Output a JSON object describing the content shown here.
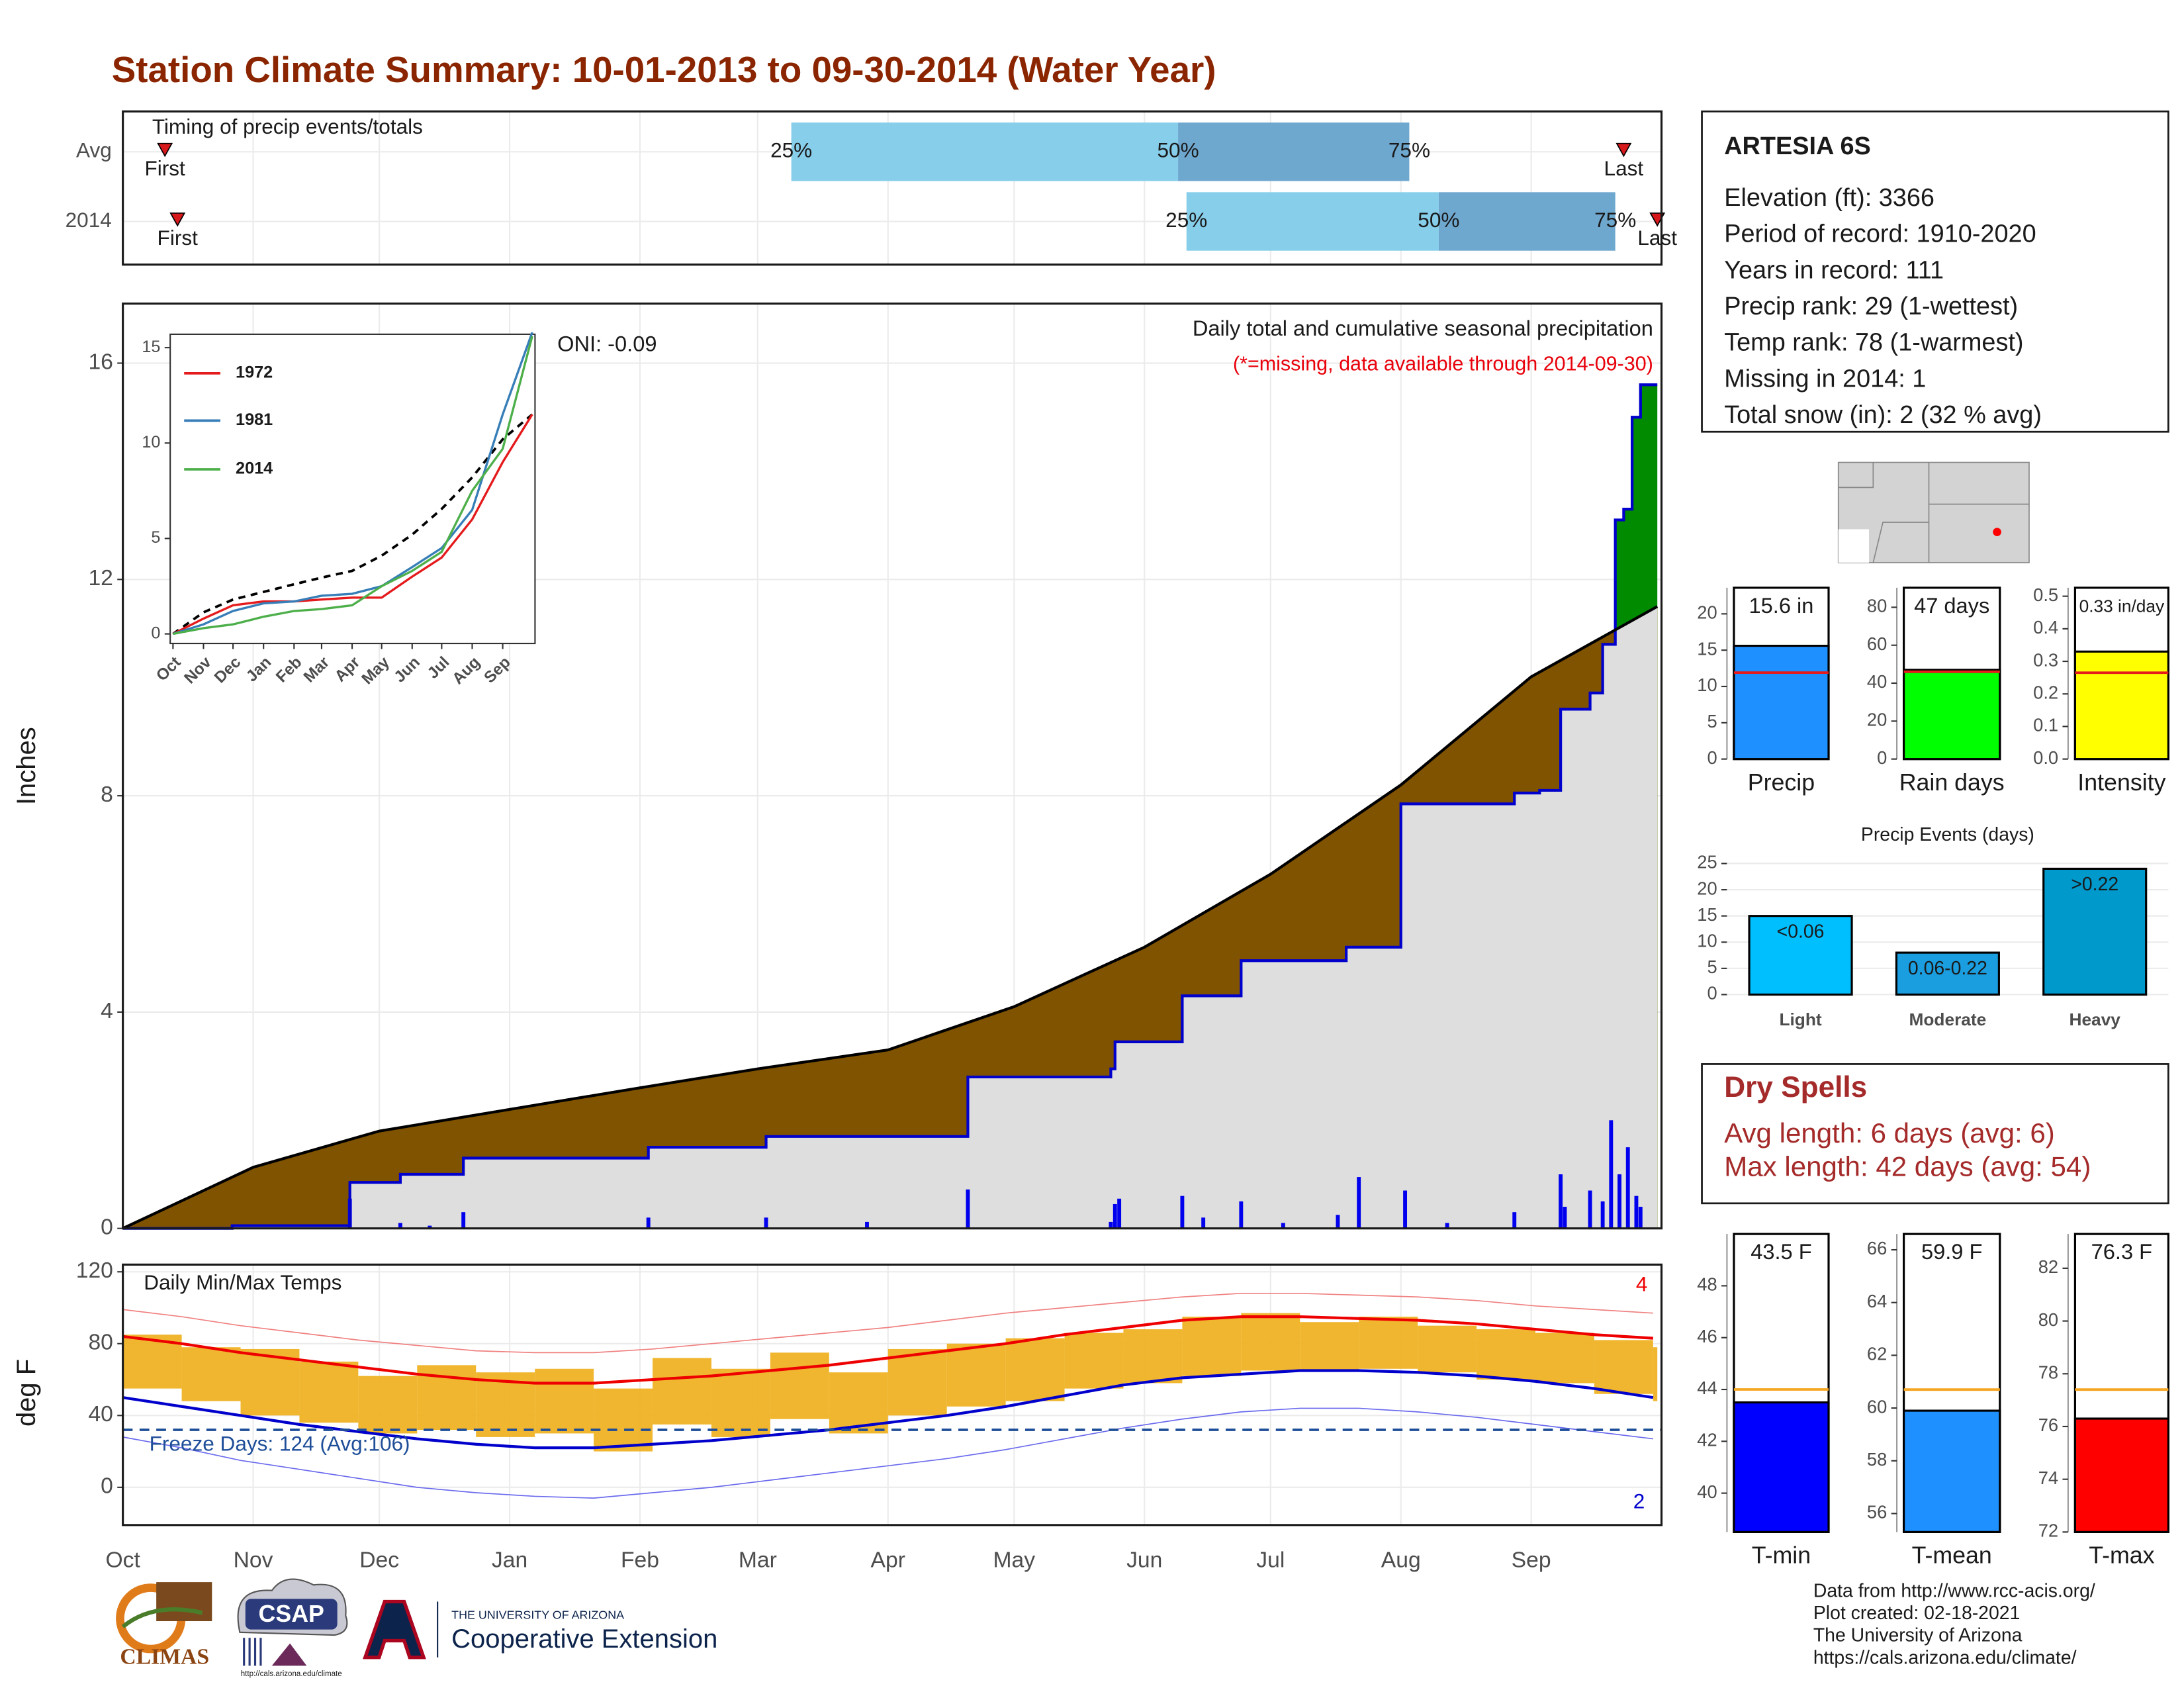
{
  "title": "Station Climate Summary: 10-01-2013 to 09-30-2014 (Water Year)",
  "chart_data": [
    {
      "type": "timing",
      "title": "Timing of precip events/totals",
      "xlim": [
        0,
        365
      ],
      "pct_labels": [
        "25%",
        "50%",
        "75%"
      ],
      "first_label": "First",
      "last_label": "Last",
      "colors": {
        "lower": "#87ceeb",
        "upper": "#6fa8cf",
        "marker": "#d7191c"
      },
      "rows": [
        {
          "name": "Avg",
          "first": 10,
          "q25": 159,
          "q50": 251,
          "q75": 306,
          "last": 357
        },
        {
          "name": "2014",
          "first": 13,
          "q25": 253,
          "q50": 313,
          "q75": 355,
          "last": 365
        }
      ]
    },
    {
      "type": "cumulative",
      "ylabel": "Inches",
      "xlim": [
        0,
        365
      ],
      "ylim": [
        0,
        17.1
      ],
      "yticks": [
        0,
        4,
        8,
        12,
        16
      ],
      "xticks": [
        {
          "value": 0,
          "label": "Oct"
        },
        {
          "value": 31,
          "label": "Nov"
        },
        {
          "value": 61,
          "label": "Dec"
        },
        {
          "value": 92,
          "label": "Jan"
        },
        {
          "value": 123,
          "label": "Feb"
        },
        {
          "value": 151,
          "label": "Mar"
        },
        {
          "value": 182,
          "label": "Apr"
        },
        {
          "value": 212,
          "label": "May"
        },
        {
          "value": 243,
          "label": "Jun"
        },
        {
          "value": 273,
          "label": "Jul"
        },
        {
          "value": 304,
          "label": "Aug"
        },
        {
          "value": 335,
          "label": "Sep"
        }
      ],
      "grid": true,
      "oni": "ONI: -0.09",
      "subtitle": "Daily total and cumulative seasonal precipitation",
      "note": "(*=missing, data available through 2014-09-30)",
      "colors": {
        "average": "#000000",
        "observed": "#0000cc",
        "deficit": "#805300",
        "surplus": "#008b00",
        "base": "#dedede",
        "daily": "#0000ee",
        "note": "#e8000b"
      },
      "average": {
        "x": [
          0,
          31,
          61,
          92,
          123,
          151,
          182,
          212,
          243,
          273,
          304,
          335,
          365
        ],
        "values": [
          0,
          1.13,
          1.8,
          2.2,
          2.6,
          2.95,
          3.3,
          4.1,
          5.2,
          6.55,
          8.2,
          10.2,
          11.5
        ]
      },
      "observed": {
        "x": [
          0,
          26,
          54,
          66,
          81,
          125,
          153,
          201,
          235,
          236,
          252,
          266,
          291,
          304,
          331,
          337,
          342,
          349,
          352,
          355,
          357,
          359,
          361,
          365
        ],
        "values": [
          0,
          0.05,
          0.85,
          1.0,
          1.3,
          1.5,
          1.7,
          2.8,
          2.95,
          3.45,
          4.3,
          4.95,
          5.2,
          7.85,
          8.05,
          8.1,
          9.6,
          9.9,
          10.8,
          13.1,
          13.3,
          15.0,
          15.6,
          15.6
        ]
      },
      "daily": {
        "x": [
          54,
          66,
          73,
          81,
          125,
          153,
          177,
          201,
          235,
          236,
          237,
          252,
          257,
          266,
          276,
          289,
          294,
          305,
          315,
          331,
          342,
          343,
          349,
          352,
          354,
          356,
          358,
          360,
          361
        ],
        "values": [
          0.55,
          0.1,
          0.05,
          0.3,
          0.2,
          0.2,
          0.12,
          0.72,
          0.12,
          0.45,
          0.55,
          0.6,
          0.2,
          0.5,
          0.1,
          0.25,
          0.95,
          0.7,
          0.1,
          0.3,
          1.0,
          0.4,
          0.7,
          0.5,
          2.0,
          1.0,
          1.5,
          0.6,
          0.4
        ]
      }
    },
    {
      "type": "line",
      "xlim": [
        0,
        365
      ],
      "ylim": [
        -0.5,
        15.7
      ],
      "yticks": [
        0,
        5,
        10,
        15
      ],
      "xticks": [
        {
          "value": 0,
          "label": "Oct"
        },
        {
          "value": 31,
          "label": "Nov"
        },
        {
          "value": 61,
          "label": "Dec"
        },
        {
          "value": 92,
          "label": "Jan"
        },
        {
          "value": 123,
          "label": "Feb"
        },
        {
          "value": 151,
          "label": "Mar"
        },
        {
          "value": 182,
          "label": "Apr"
        },
        {
          "value": 212,
          "label": "May"
        },
        {
          "value": 243,
          "label": "Jun"
        },
        {
          "value": 273,
          "label": "Jul"
        },
        {
          "value": 304,
          "label": "Aug"
        },
        {
          "value": 335,
          "label": "Sep"
        }
      ],
      "x": [
        0,
        31,
        61,
        92,
        123,
        151,
        182,
        212,
        243,
        273,
        304,
        335,
        365
      ],
      "average": {
        "color": "#000000",
        "values": [
          0,
          1.13,
          1.8,
          2.2,
          2.6,
          2.95,
          3.3,
          4.1,
          5.2,
          6.55,
          8.2,
          10.2,
          11.5
        ]
      },
      "series": [
        {
          "name": "1972",
          "color": "#e41a1c",
          "values": [
            0,
            0.8,
            1.5,
            1.7,
            1.7,
            1.8,
            1.9,
            1.9,
            3,
            4,
            6,
            9,
            11.5
          ]
        },
        {
          "name": "1981",
          "color": "#377eb8",
          "values": [
            0,
            0.5,
            1.2,
            1.6,
            1.7,
            2.0,
            2.1,
            2.5,
            3.5,
            4.5,
            6.5,
            11.5,
            15.8
          ]
        },
        {
          "name": "2014",
          "color": "#4daf4a",
          "values": [
            0,
            0.3,
            0.5,
            0.9,
            1.2,
            1.3,
            1.5,
            2.5,
            3.3,
            4.3,
            7.5,
            9.7,
            15.6
          ]
        }
      ]
    },
    {
      "type": "temperature",
      "title": "Daily Min/Max Temps",
      "ylabel": "deg F",
      "xlim": [
        0,
        365
      ],
      "ylim": [
        -21,
        124
      ],
      "yticks": [
        0,
        40,
        80,
        120
      ],
      "grid": true,
      "freeze_text": "Freeze Days: 124 (Avg:106)",
      "freeze_line": 32,
      "record_highs": 4,
      "record_lows": 2,
      "colors": {
        "daily": "#efb224",
        "average_max": "#ee0000",
        "average_min": "#0000cc",
        "record_max": "#f08080",
        "record_min": "#6a6aee",
        "freeze": "#1f4e99"
      },
      "x": [
        0,
        14,
        28,
        42,
        56,
        70,
        84,
        98,
        112,
        126,
        140,
        154,
        168,
        182,
        196,
        210,
        224,
        238,
        252,
        266,
        280,
        294,
        308,
        322,
        336,
        350,
        364
      ],
      "daily_max": [
        85,
        78,
        77,
        70,
        62,
        68,
        64,
        66,
        55,
        72,
        66,
        75,
        64,
        77,
        80,
        83,
        86,
        88,
        95,
        97,
        92,
        95,
        90,
        88,
        86,
        82,
        78
      ],
      "daily_min": [
        55,
        48,
        40,
        36,
        30,
        32,
        28,
        30,
        20,
        35,
        28,
        38,
        30,
        40,
        45,
        48,
        55,
        58,
        62,
        65,
        65,
        66,
        64,
        60,
        58,
        52,
        48
      ],
      "average_max": [
        84,
        80,
        75,
        71,
        67,
        63,
        60,
        58,
        58,
        60,
        62,
        65,
        68,
        72,
        76,
        80,
        85,
        89,
        93,
        95,
        95,
        94,
        93,
        91,
        88,
        85,
        83
      ],
      "average_min": [
        50,
        45,
        40,
        35,
        31,
        27,
        24,
        22,
        22,
        24,
        26,
        29,
        32,
        36,
        40,
        45,
        51,
        57,
        61,
        63,
        65,
        65,
        64,
        62,
        59,
        55,
        50
      ],
      "record_max": [
        99,
        95,
        90,
        86,
        82,
        79,
        76,
        75,
        75,
        77,
        80,
        83,
        86,
        89,
        93,
        97,
        100,
        103,
        106,
        108,
        108,
        107,
        106,
        104,
        101,
        99,
        97
      ],
      "record_min": [
        28,
        22,
        15,
        10,
        5,
        0,
        -3,
        -5,
        -6,
        -3,
        0,
        4,
        8,
        12,
        16,
        21,
        27,
        33,
        38,
        42,
        44,
        44,
        42,
        39,
        35,
        31,
        27
      ]
    },
    {
      "type": "summary-bar",
      "category": "Precip",
      "value": 15.6,
      "value_label": "15.6 in",
      "average": 11.9,
      "color": "#1e90ff",
      "average_color": "#e41a1c",
      "ylim": [
        0,
        23.6
      ],
      "yticks": [
        0,
        5,
        10,
        15,
        20
      ]
    },
    {
      "type": "summary-bar",
      "category": "Rain days",
      "value": 47,
      "value_label": "47 days",
      "average": 46,
      "color": "#00ff00",
      "average_color": "#e41a1c",
      "ylim": [
        0,
        90.3
      ],
      "yticks": [
        0,
        20,
        40,
        60,
        80
      ]
    },
    {
      "type": "summary-bar",
      "category": "Intensity",
      "value": 0.33,
      "value_label": "0.33 in/day",
      "average": 0.265,
      "color": "#ffff00",
      "average_color": "#e41a1c",
      "ylim": [
        0,
        0.526
      ],
      "yticks": [
        {
          "value": 0,
          "label": "0.0"
        },
        0.1,
        0.2,
        0.3,
        0.4,
        0.5
      ]
    },
    {
      "type": "bar",
      "title": "Precip Events (days)",
      "categories": [
        "Light",
        "Moderate",
        "Heavy"
      ],
      "values": [
        15,
        8,
        24
      ],
      "bin_labels": [
        "<0.06",
        "0.06-0.22",
        ">0.22"
      ],
      "colors": [
        "#00bfff",
        "#1a9ee0",
        "#0099cc"
      ],
      "ylim": [
        -0.5,
        25.8
      ],
      "yticks": [
        0,
        5,
        10,
        15,
        20,
        25
      ],
      "grid": true
    },
    {
      "type": "summary-bar",
      "category": "T-min",
      "value": 43.5,
      "value_label": "43.5 F",
      "average": 44.0,
      "color": "#0000ff",
      "average_color": "#f5a623",
      "ylim": [
        38.5,
        50
      ],
      "yticks": [
        40,
        42,
        44,
        46,
        48
      ]
    },
    {
      "type": "summary-bar",
      "category": "T-mean",
      "value": 59.9,
      "value_label": "59.9 F",
      "average": 60.7,
      "color": "#1e90ff",
      "average_color": "#f5a623",
      "ylim": [
        55.3,
        66.6
      ],
      "yticks": [
        56,
        58,
        60,
        62,
        64,
        66
      ]
    },
    {
      "type": "summary-bar",
      "category": "T-max",
      "value": 76.3,
      "value_label": "76.3 F",
      "average": 77.4,
      "color": "#ff0000",
      "average_color": "#f5a623",
      "ylim": [
        72,
        83.3
      ],
      "yticks": [
        72,
        74,
        76,
        78,
        80,
        82
      ]
    }
  ],
  "station": {
    "name": "ARTESIA 6S",
    "lines": [
      "Elevation (ft): 3366",
      "Period of record: 1910-2020",
      "Years in record: 111",
      "Precip rank: 29 (1-wettest)",
      "Temp rank: 78 (1-warmest)",
      "Missing in 2014: 1",
      "Total snow (in): 2 (32 % avg)"
    ]
  },
  "dry_spells": {
    "title": "Dry Spells",
    "lines": [
      "Avg length: 6 days (avg: 6)",
      "Max length: 42 days (avg: 54)"
    ]
  },
  "footer": {
    "credits": [
      "Data from http://www.rcc-acis.org/",
      "Plot created: 02-18-2021",
      "The University of Arizona",
      "https://cals.arizona.edu/climate/"
    ],
    "logos": {
      "climas": "CLIMAS",
      "csap": "CSAP",
      "csap_url": "http://cals.arizona.edu/climate",
      "ua_small": "THE UNIVERSITY OF ARIZONA",
      "ua_large": "Cooperative Extension"
    }
  }
}
